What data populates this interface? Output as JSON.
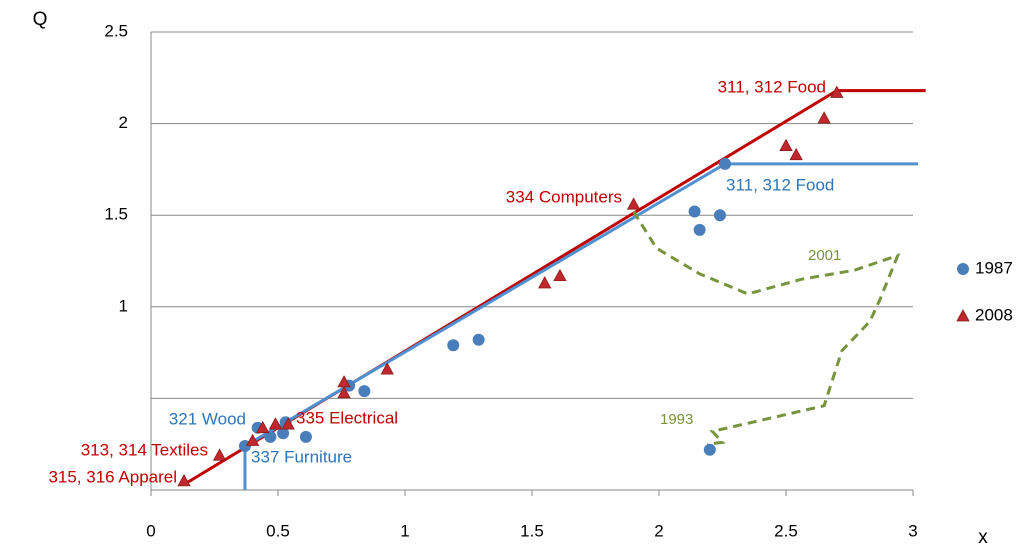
{
  "chart_data": {
    "type": "scatter",
    "y_label": "Q",
    "x_label": "x",
    "xlim": [
      0,
      3
    ],
    "ylim": [
      0,
      2.5
    ],
    "xticks": [
      0,
      0.5,
      1,
      1.5,
      2,
      2.5,
      3
    ],
    "yticks": [
      {
        "value": 0.5,
        "label": null
      },
      1,
      1.5,
      2,
      2.5
    ],
    "grid": true,
    "series": [
      {
        "name": "1987",
        "color": "#4a7ebb",
        "marker": "circle",
        "x": [
          0.37,
          0.42,
          0.47,
          0.52,
          0.53,
          0.61,
          0.78,
          0.84,
          1.19,
          1.29,
          2.14,
          2.16,
          2.24,
          2.26,
          2.2
        ],
        "values": [
          0.24,
          0.34,
          0.29,
          0.31,
          0.37,
          0.29,
          0.57,
          0.54,
          0.79,
          0.82,
          1.52,
          1.42,
          1.5,
          1.78,
          0.22
        ]
      },
      {
        "name": "2008",
        "color": "#c0282d",
        "marker": "triangle",
        "x": [
          0.13,
          0.27,
          0.4,
          0.44,
          0.49,
          0.54,
          0.76,
          0.76,
          0.93,
          1.55,
          1.61,
          1.9,
          2.5,
          2.54,
          2.65,
          2.7
        ],
        "values": [
          0.05,
          0.19,
          0.27,
          0.34,
          0.36,
          0.36,
          0.53,
          0.59,
          0.66,
          1.13,
          1.17,
          1.56,
          1.88,
          1.83,
          2.03,
          2.17
        ]
      }
    ],
    "lines": [
      {
        "color": "#c00000",
        "x": [
          0.13,
          2.7,
          3.05
        ],
        "values": [
          0.03,
          2.18,
          2.18
        ]
      },
      {
        "color": "#4f90d0",
        "x": [
          0.37,
          0.37,
          2.26,
          3.02
        ],
        "values": [
          0,
          0.24,
          1.78,
          1.78
        ]
      },
      {
        "color": "#77933c",
        "dashed": true,
        "x": [
          1.9,
          1.99,
          2.16,
          2.35,
          2.56,
          2.77,
          2.94,
          2.87,
          2.83,
          2.72,
          2.65,
          2.4,
          2.21,
          2.25,
          2.19
        ],
        "values": [
          1.52,
          1.32,
          1.18,
          1.07,
          1.15,
          1.2,
          1.28,
          1.04,
          0.92,
          0.76,
          0.46,
          0.38,
          0.32,
          0.26,
          0.25
        ]
      }
    ],
    "annotations": [
      {
        "text": "311, 312 Food",
        "color": "#c00000"
      },
      {
        "text": "334 Computers",
        "color": "#c00000"
      },
      {
        "text": "335 Electrical",
        "color": "#c00000"
      },
      {
        "text": "313, 314 Textiles",
        "color": "#c00000"
      },
      {
        "text": "315, 316 Apparel",
        "color": "#c00000"
      },
      {
        "text": "311, 312 Food",
        "color": "#2e75b6"
      },
      {
        "text": "321  Wood",
        "color": "#2e75b6"
      },
      {
        "text": "337  Furniture",
        "color": "#2e75b6"
      },
      {
        "text": "2001",
        "color": "#77933c"
      },
      {
        "text": "1993",
        "color": "#77933c"
      }
    ]
  }
}
